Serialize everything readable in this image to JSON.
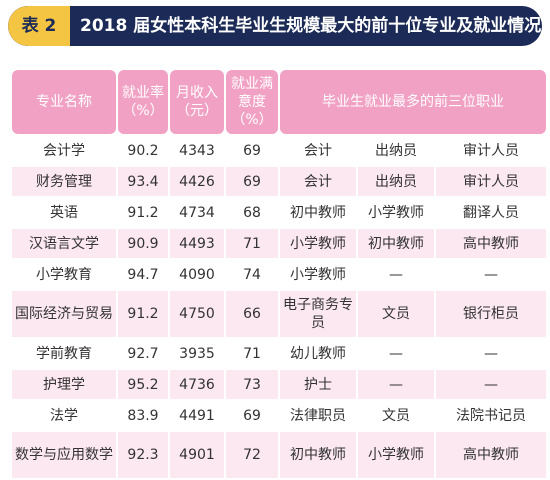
{
  "title": {
    "tag": "表 2",
    "text": "2018 届女性本科生毕业生规模最大的前十位专业及就业情况"
  },
  "table": {
    "headers": [
      "专业名称",
      "就业率（%）",
      "月收入（元）",
      "就业满意度（%）",
      "毕业生就业最多的前三位职业"
    ],
    "rows": [
      [
        "会计学",
        "90.2",
        "4343",
        "69",
        "会计",
        "出纳员",
        "审计人员"
      ],
      [
        "财务管理",
        "93.4",
        "4426",
        "69",
        "会计",
        "出纳员",
        "审计人员"
      ],
      [
        "英语",
        "91.2",
        "4734",
        "68",
        "初中教师",
        "小学教师",
        "翻译人员"
      ],
      [
        "汉语言文学",
        "90.9",
        "4493",
        "71",
        "小学教师",
        "初中教师",
        "高中教师"
      ],
      [
        "小学教育",
        "94.7",
        "4090",
        "74",
        "小学教师",
        "—",
        "—"
      ],
      [
        "国际经济与贸易",
        "91.2",
        "4750",
        "66",
        "电子商务专员",
        "文员",
        "银行柜员"
      ],
      [
        "学前教育",
        "92.7",
        "3935",
        "71",
        "幼儿教师",
        "—",
        "—"
      ],
      [
        "护理学",
        "95.2",
        "4736",
        "73",
        "护士",
        "—",
        "—"
      ],
      [
        "法学",
        "83.9",
        "4491",
        "69",
        "法律职员",
        "文员",
        "法院书记员"
      ],
      [
        "数学与应用数学",
        "92.3",
        "4901",
        "72",
        "初中教师",
        "小学教师",
        "高中教师"
      ]
    ]
  }
}
